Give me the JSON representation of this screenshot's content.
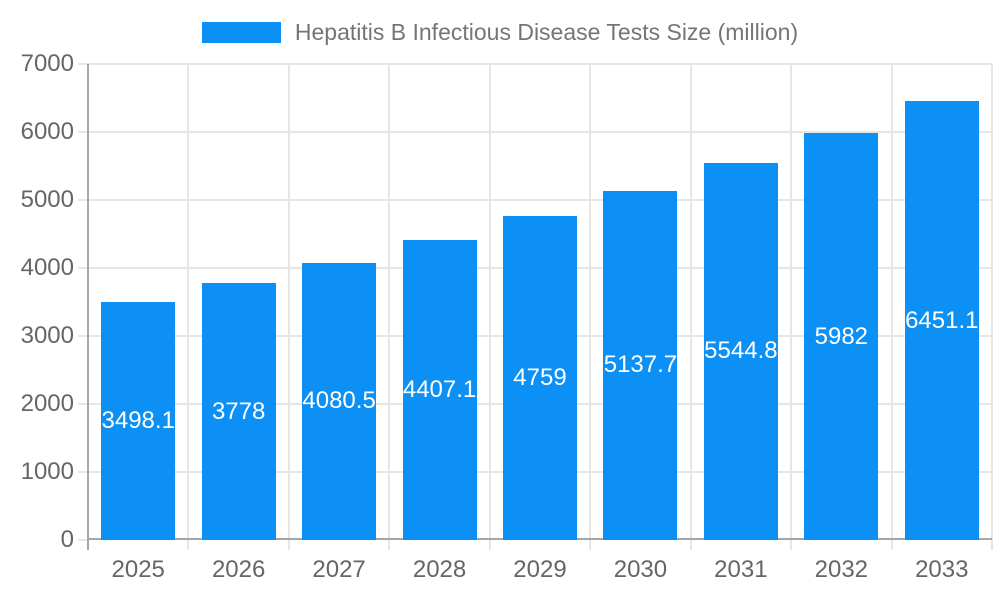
{
  "chart_data": {
    "type": "bar",
    "title": "Hepatitis B Infectious Disease Tests Size (million)",
    "legend": {
      "position": "top",
      "entries": [
        {
          "label": "Hepatitis B Infectious Disease Tests Size (million)",
          "color": "#0d90f5"
        }
      ]
    },
    "categories": [
      "2025",
      "2026",
      "2027",
      "2028",
      "2029",
      "2030",
      "2031",
      "2032",
      "2033"
    ],
    "values": [
      3498.1,
      3778,
      4080.5,
      4407.1,
      4759,
      5137.7,
      5544.8,
      5982,
      6451.1
    ],
    "value_labels": [
      "3498.1",
      "3778",
      "4080.5",
      "4407.1",
      "4759",
      "5137.7",
      "5544.8",
      "5982",
      "6451.1"
    ],
    "xlabel": "",
    "ylabel": "",
    "ylim": [
      0,
      7000
    ],
    "yticks": [
      0,
      1000,
      2000,
      3000,
      4000,
      5000,
      6000,
      7000
    ],
    "grid": true,
    "colors": {
      "bar": "#0d90f5",
      "grid": "#e6e6e6",
      "axis": "#a6a6a6",
      "tick_label": "#666666",
      "legend_text": "#757575",
      "value_label": "#ffffff",
      "background": "#ffffff"
    }
  }
}
